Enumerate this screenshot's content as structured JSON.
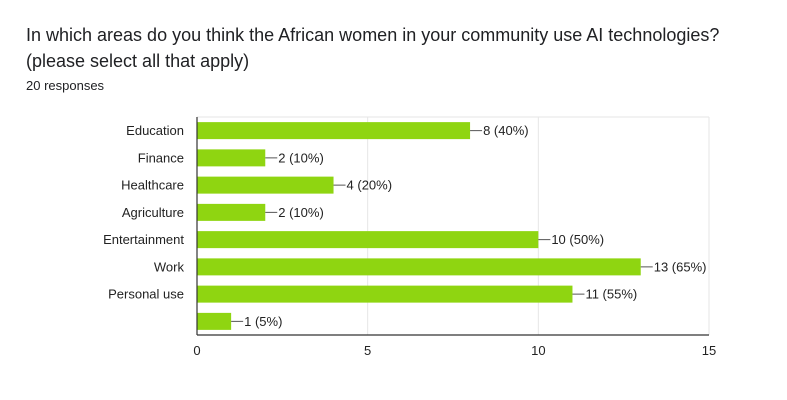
{
  "question": {
    "title": "In which areas do you think the African women in your community use AI technologies? (please select all that apply)",
    "responses": "20 responses"
  },
  "colors": {
    "bar": "#8fd511",
    "grid": "#e6e6e6",
    "axis": "#333333"
  },
  "chart_data": {
    "type": "bar",
    "orientation": "horizontal",
    "categories": [
      "Education",
      "Finance",
      "Healthcare",
      "Agriculture",
      "Entertainment",
      "Work",
      "Personal use",
      ""
    ],
    "values": [
      8,
      2,
      4,
      2,
      10,
      13,
      11,
      1
    ],
    "data_labels": [
      "8 (40%)",
      "2 (10%)",
      "4 (20%)",
      "2 (10%)",
      "10 (50%)",
      "13 (65%)",
      "11 (55%)",
      "1 (5%)"
    ],
    "xlim": [
      0,
      15
    ],
    "xticks": [
      0,
      5,
      10,
      15
    ],
    "grid": true
  }
}
